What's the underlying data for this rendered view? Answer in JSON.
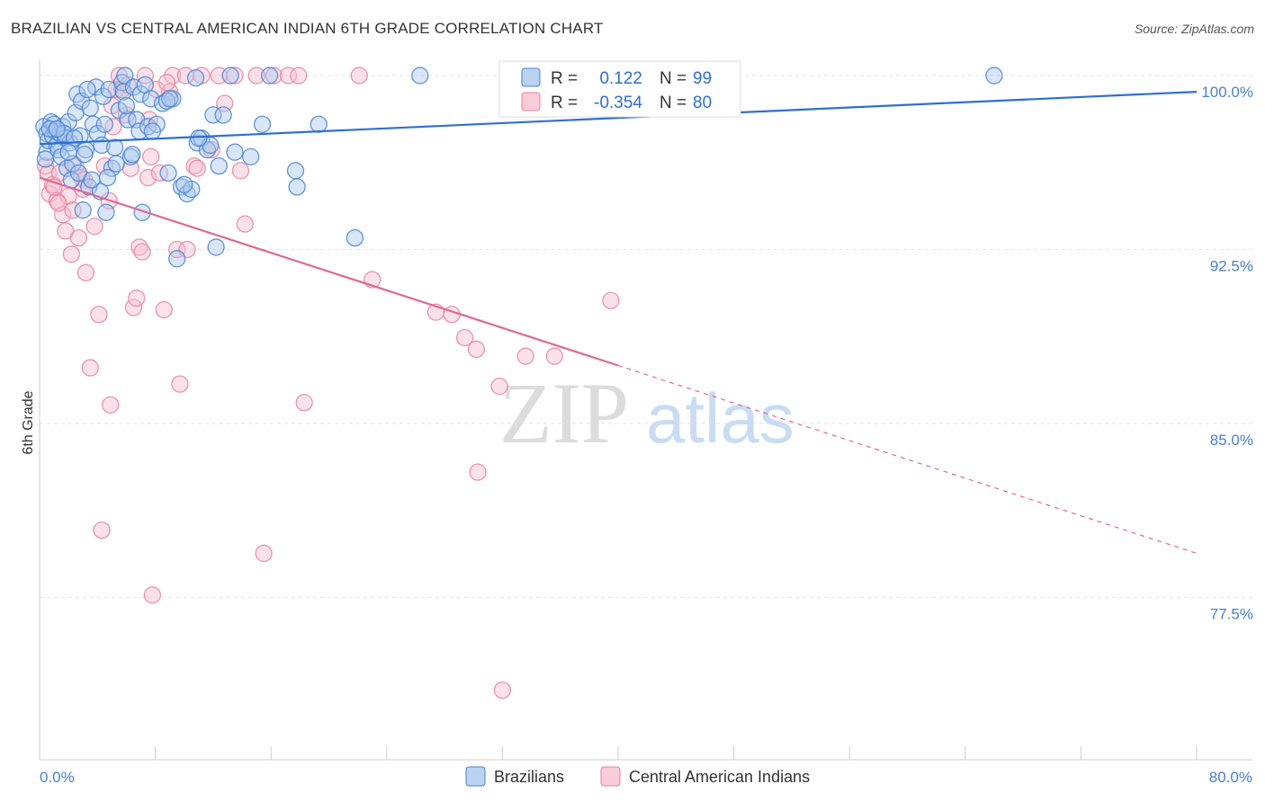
{
  "title": "BRAZILIAN VS CENTRAL AMERICAN INDIAN 6TH GRADE CORRELATION CHART",
  "source": "Source: ZipAtlas.com",
  "watermark": {
    "zip": "ZIP",
    "atlas": "atlas"
  },
  "colors": {
    "blue_fill": "#a9c8f0",
    "blue_stroke": "#4a82d2",
    "blue_line": "#2e6fd0",
    "pink_fill": "#f6bfd0",
    "pink_stroke": "#e8829f",
    "pink_line": "#e06794",
    "tick_text": "#4a7fd0",
    "grid": "#e3e3e3"
  },
  "stats": [
    {
      "r_label": "R =",
      "r_value": "0.122",
      "n_label": "N =",
      "n_value": "99",
      "color": "blue"
    },
    {
      "r_label": "R =",
      "r_value": "-0.354",
      "n_label": "N =",
      "n_value": "80",
      "color": "pink"
    }
  ],
  "legend": [
    {
      "label": "Brazilians",
      "color": "blue"
    },
    {
      "label": "Central American Indians",
      "color": "pink"
    }
  ],
  "chart_data": {
    "type": "scatter",
    "xlabel": "",
    "ylabel": "6th Grade",
    "xlim": [
      0,
      80
    ],
    "ylim": [
      70.5,
      100.7
    ],
    "x_tick_labels": [
      "0.0%",
      "80.0%"
    ],
    "y_ticks": [
      100.0,
      92.5,
      85.0,
      77.5
    ],
    "y_tick_labels": [
      "100.0%",
      "92.5%",
      "85.0%",
      "77.5%"
    ],
    "series": [
      {
        "name": "Brazilians",
        "color": "blue",
        "trend": {
          "x": [
            0,
            80
          ],
          "y": [
            97.05,
            99.3
          ],
          "dashed_to": null
        },
        "points": [
          [
            0.3,
            97.8
          ],
          [
            0.5,
            97.5
          ],
          [
            0.5,
            96.7
          ],
          [
            0.6,
            97.2
          ],
          [
            0.8,
            98.0
          ],
          [
            0.9,
            97.4
          ],
          [
            1.0,
            97.9
          ],
          [
            1.1,
            97.6
          ],
          [
            1.2,
            97.0
          ],
          [
            1.3,
            96.8
          ],
          [
            1.4,
            97.5
          ],
          [
            1.5,
            96.5
          ],
          [
            1.6,
            97.8
          ],
          [
            1.8,
            97.3
          ],
          [
            1.9,
            96.0
          ],
          [
            2.0,
            98.0
          ],
          [
            2.1,
            97.1
          ],
          [
            2.2,
            95.5
          ],
          [
            2.3,
            96.2
          ],
          [
            2.5,
            98.4
          ],
          [
            2.6,
            99.2
          ],
          [
            2.7,
            95.8
          ],
          [
            2.8,
            97.4
          ],
          [
            2.9,
            98.9
          ],
          [
            3.0,
            94.2
          ],
          [
            3.2,
            96.8
          ],
          [
            3.4,
            95.2
          ],
          [
            3.5,
            98.6
          ],
          [
            3.7,
            97.9
          ],
          [
            3.9,
            99.5
          ],
          [
            4.0,
            97.5
          ],
          [
            4.2,
            95.0
          ],
          [
            4.3,
            97.0
          ],
          [
            4.4,
            99.1
          ],
          [
            4.5,
            97.9
          ],
          [
            4.6,
            94.1
          ],
          [
            4.8,
            99.4
          ],
          [
            5.0,
            96.0
          ],
          [
            5.3,
            96.2
          ],
          [
            5.5,
            98.5
          ],
          [
            5.7,
            99.7
          ],
          [
            5.8,
            99.3
          ],
          [
            5.9,
            100.0
          ],
          [
            6.1,
            98.1
          ],
          [
            6.3,
            96.5
          ],
          [
            6.5,
            99.5
          ],
          [
            6.7,
            98.1
          ],
          [
            6.9,
            97.6
          ],
          [
            7.0,
            99.2
          ],
          [
            7.1,
            94.1
          ],
          [
            7.3,
            99.6
          ],
          [
            7.5,
            97.8
          ],
          [
            7.7,
            99.0
          ],
          [
            8.1,
            97.9
          ],
          [
            8.5,
            98.8
          ],
          [
            8.9,
            95.8
          ],
          [
            9.2,
            99.0
          ],
          [
            9.5,
            92.1
          ],
          [
            9.8,
            95.2
          ],
          [
            10.2,
            94.9
          ],
          [
            10.5,
            95.1
          ],
          [
            10.8,
            99.9
          ],
          [
            10.9,
            97.1
          ],
          [
            11.2,
            97.3
          ],
          [
            11.6,
            96.8
          ],
          [
            11.8,
            97.0
          ],
          [
            12.0,
            98.3
          ],
          [
            12.2,
            92.6
          ],
          [
            12.4,
            96.1
          ],
          [
            13.2,
            100.0
          ],
          [
            13.5,
            96.7
          ],
          [
            14.6,
            96.5
          ],
          [
            15.4,
            97.9
          ],
          [
            15.9,
            100.0
          ],
          [
            17.7,
            95.9
          ],
          [
            17.8,
            95.2
          ],
          [
            19.3,
            97.9
          ],
          [
            21.8,
            93.0
          ],
          [
            26.3,
            100.0
          ],
          [
            66.0,
            100.0
          ],
          [
            0.4,
            96.4
          ],
          [
            0.7,
            97.7
          ],
          [
            1.7,
            97.5
          ],
          [
            2.4,
            97.3
          ],
          [
            3.1,
            96.6
          ],
          [
            3.6,
            95.5
          ],
          [
            4.7,
            95.6
          ],
          [
            5.2,
            96.9
          ],
          [
            6.0,
            98.7
          ],
          [
            6.4,
            96.6
          ],
          [
            7.8,
            97.6
          ],
          [
            8.8,
            98.9
          ],
          [
            9.0,
            99.0
          ],
          [
            10.0,
            95.3
          ],
          [
            11.0,
            97.3
          ],
          [
            12.7,
            98.3
          ],
          [
            3.3,
            99.4
          ],
          [
            2.0,
            96.7
          ],
          [
            1.2,
            97.7
          ]
        ]
      },
      {
        "name": "Central American Indians",
        "color": "pink",
        "trend": {
          "x": [
            0,
            40
          ],
          "y": [
            95.6,
            87.5
          ],
          "dashed_to": [
            80,
            79.4
          ]
        },
        "points": [
          [
            0.4,
            96.1
          ],
          [
            0.6,
            95.8
          ],
          [
            0.7,
            94.9
          ],
          [
            0.9,
            95.3
          ],
          [
            1.2,
            94.6
          ],
          [
            1.4,
            95.8
          ],
          [
            1.6,
            94.0
          ],
          [
            1.8,
            93.3
          ],
          [
            2.0,
            94.8
          ],
          [
            2.2,
            92.3
          ],
          [
            2.5,
            96.1
          ],
          [
            2.7,
            93.0
          ],
          [
            2.9,
            95.6
          ],
          [
            3.1,
            95.5
          ],
          [
            3.2,
            91.5
          ],
          [
            3.5,
            87.4
          ],
          [
            3.8,
            93.5
          ],
          [
            4.1,
            89.7
          ],
          [
            4.3,
            80.4
          ],
          [
            4.5,
            96.1
          ],
          [
            4.8,
            94.6
          ],
          [
            4.9,
            85.8
          ],
          [
            5.1,
            97.8
          ],
          [
            5.3,
            99.4
          ],
          [
            5.5,
            100.0
          ],
          [
            5.7,
            99.4
          ],
          [
            6.0,
            98.3
          ],
          [
            6.3,
            96.0
          ],
          [
            6.5,
            90.0
          ],
          [
            6.7,
            90.4
          ],
          [
            6.9,
            92.6
          ],
          [
            7.1,
            92.4
          ],
          [
            7.3,
            100.0
          ],
          [
            7.5,
            95.6
          ],
          [
            7.6,
            98.1
          ],
          [
            7.7,
            96.5
          ],
          [
            7.8,
            77.6
          ],
          [
            8.1,
            99.4
          ],
          [
            8.3,
            95.8
          ],
          [
            8.6,
            89.9
          ],
          [
            9.0,
            99.3
          ],
          [
            9.2,
            100.0
          ],
          [
            9.5,
            92.5
          ],
          [
            9.7,
            86.7
          ],
          [
            10.1,
            100.0
          ],
          [
            10.2,
            92.5
          ],
          [
            10.7,
            96.1
          ],
          [
            10.9,
            96.0
          ],
          [
            11.2,
            100.0
          ],
          [
            11.9,
            96.8
          ],
          [
            12.4,
            100.0
          ],
          [
            12.8,
            98.8
          ],
          [
            13.5,
            100.0
          ],
          [
            13.9,
            95.9
          ],
          [
            14.2,
            93.6
          ],
          [
            15.5,
            79.4
          ],
          [
            16.2,
            100.0
          ],
          [
            17.2,
            100.0
          ],
          [
            17.9,
            100.0
          ],
          [
            18.3,
            85.9
          ],
          [
            22.1,
            100.0
          ],
          [
            23.0,
            91.2
          ],
          [
            27.4,
            89.8
          ],
          [
            28.5,
            89.7
          ],
          [
            29.4,
            88.7
          ],
          [
            30.2,
            88.2
          ],
          [
            30.3,
            82.9
          ],
          [
            31.8,
            86.6
          ],
          [
            32.0,
            73.5
          ],
          [
            33.6,
            87.9
          ],
          [
            35.6,
            87.9
          ],
          [
            39.5,
            90.3
          ],
          [
            1.0,
            95.2
          ],
          [
            1.3,
            94.5
          ],
          [
            2.3,
            94.2
          ],
          [
            3.0,
            95.1
          ],
          [
            5.0,
            98.7
          ],
          [
            6.1,
            99.6
          ],
          [
            8.8,
            99.7
          ],
          [
            15.0,
            100.0
          ]
        ]
      }
    ]
  }
}
